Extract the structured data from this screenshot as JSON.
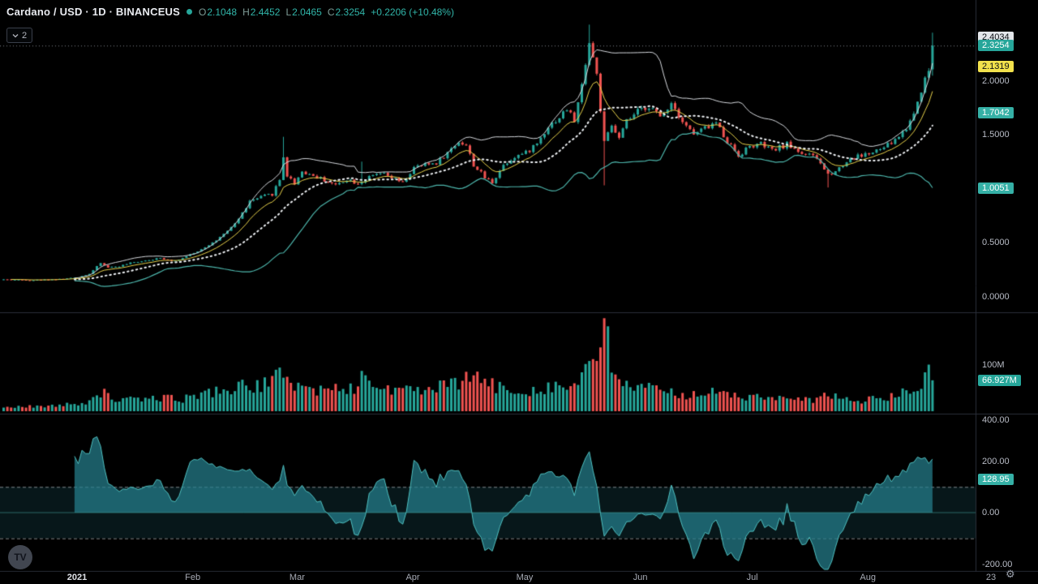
{
  "header": {
    "symbol_title": "Cardano / USD · 1D · BINANCEUS",
    "ohlc": {
      "o_label": "O",
      "o": "2.1048",
      "h_label": "H",
      "h": "2.4452",
      "l_label": "L",
      "l": "2.0465",
      "c_label": "C",
      "c": "2.3254",
      "change": "+0.2206 (+10.48%)"
    },
    "collapsed_count": "2"
  },
  "footer": {
    "logo_text": "TV",
    "gear_icon": "⚙"
  },
  "colors": {
    "up": "#26a69a",
    "down": "#ef5350",
    "band_upper_line": "#d6d9de",
    "band_lower_line": "#4db6ac",
    "basis_dotted": "#eef1f4",
    "ema_line": "#e8d24b",
    "osc_fill": "rgba(38,128,141,0.72)",
    "osc_line": "#4fc0c0",
    "osc_band_fill": "rgba(45,140,160,0.16)",
    "dashed_level": "rgba(225,228,232,0.55)",
    "separator": "#2a2e39",
    "last_price_line": "#80848d"
  },
  "chart_data": {
    "type": "candlestick",
    "title": "Cardano / USD · 1D · BINANCEUS",
    "candle_count": 250,
    "last_candle": {
      "open": 2.1048,
      "high": 2.4452,
      "low": 2.0465,
      "close": 2.3254,
      "change_abs": 0.2206,
      "change_pct": 10.48
    },
    "close_anchors": [
      [
        0,
        0.158
      ],
      [
        8,
        0.152
      ],
      [
        16,
        0.162
      ],
      [
        20,
        0.178
      ],
      [
        23,
        0.21
      ],
      [
        26,
        0.31
      ],
      [
        28,
        0.27
      ],
      [
        31,
        0.28
      ],
      [
        34,
        0.31
      ],
      [
        38,
        0.335
      ],
      [
        42,
        0.355
      ],
      [
        46,
        0.33
      ],
      [
        51,
        0.4
      ],
      [
        54,
        0.46
      ],
      [
        57,
        0.52
      ],
      [
        60,
        0.6
      ],
      [
        63,
        0.72
      ],
      [
        66,
        0.88
      ],
      [
        69,
        0.92
      ],
      [
        72,
        0.95
      ],
      [
        74,
        1.08
      ],
      [
        75,
        1.3
      ],
      [
        76,
        1.12
      ],
      [
        78,
        1.05
      ],
      [
        80,
        1.16
      ],
      [
        83,
        1.12
      ],
      [
        86,
        1.08
      ],
      [
        89,
        1.03
      ],
      [
        92,
        1.09
      ],
      [
        95,
        1.05
      ],
      [
        98,
        1.1
      ],
      [
        101,
        1.14
      ],
      [
        104,
        1.1
      ],
      [
        107,
        1.05
      ],
      [
        110,
        1.19
      ],
      [
        113,
        1.22
      ],
      [
        116,
        1.24
      ],
      [
        119,
        1.33
      ],
      [
        122,
        1.44
      ],
      [
        124,
        1.4
      ],
      [
        126,
        1.22
      ],
      [
        129,
        1.1
      ],
      [
        131,
        1.06
      ],
      [
        134,
        1.22
      ],
      [
        137,
        1.3
      ],
      [
        140,
        1.33
      ],
      [
        143,
        1.42
      ],
      [
        146,
        1.58
      ],
      [
        149,
        1.66
      ],
      [
        151,
        1.74
      ],
      [
        153,
        1.63
      ],
      [
        155,
        1.95
      ],
      [
        156,
        2.18
      ],
      [
        157,
        2.35
      ],
      [
        158,
        2.22
      ],
      [
        159,
        2.05
      ],
      [
        161,
        1.42
      ],
      [
        163,
        1.58
      ],
      [
        165,
        1.46
      ],
      [
        167,
        1.62
      ],
      [
        170,
        1.71
      ],
      [
        173,
        1.77
      ],
      [
        176,
        1.66
      ],
      [
        179,
        1.8
      ],
      [
        182,
        1.63
      ],
      [
        185,
        1.5
      ],
      [
        188,
        1.56
      ],
      [
        191,
        1.61
      ],
      [
        194,
        1.44
      ],
      [
        197,
        1.31
      ],
      [
        200,
        1.39
      ],
      [
        203,
        1.41
      ],
      [
        206,
        1.35
      ],
      [
        210,
        1.41
      ],
      [
        214,
        1.33
      ],
      [
        218,
        1.28
      ],
      [
        221,
        1.13
      ],
      [
        224,
        1.19
      ],
      [
        227,
        1.28
      ],
      [
        230,
        1.31
      ],
      [
        233,
        1.33
      ],
      [
        236,
        1.38
      ],
      [
        239,
        1.45
      ],
      [
        242,
        1.56
      ],
      [
        244,
        1.7
      ],
      [
        246,
        1.92
      ],
      [
        248,
        2.1
      ],
      [
        249,
        2.3254
      ]
    ],
    "volume_anchors_millions": [
      [
        0,
        9
      ],
      [
        15,
        12
      ],
      [
        22,
        20
      ],
      [
        26,
        42
      ],
      [
        30,
        26
      ],
      [
        36,
        24
      ],
      [
        42,
        30
      ],
      [
        48,
        26
      ],
      [
        54,
        40
      ],
      [
        60,
        48
      ],
      [
        66,
        55
      ],
      [
        72,
        60
      ],
      [
        75,
        92
      ],
      [
        78,
        60
      ],
      [
        82,
        48
      ],
      [
        86,
        44
      ],
      [
        90,
        52
      ],
      [
        94,
        46
      ],
      [
        96,
        82
      ],
      [
        99,
        55
      ],
      [
        104,
        48
      ],
      [
        110,
        44
      ],
      [
        116,
        50
      ],
      [
        121,
        58
      ],
      [
        126,
        78
      ],
      [
        129,
        62
      ],
      [
        133,
        50
      ],
      [
        138,
        42
      ],
      [
        143,
        48
      ],
      [
        148,
        56
      ],
      [
        152,
        50
      ],
      [
        155,
        72
      ],
      [
        157,
        95
      ],
      [
        159,
        110
      ],
      [
        161,
        190
      ],
      [
        163,
        95
      ],
      [
        166,
        62
      ],
      [
        170,
        52
      ],
      [
        174,
        46
      ],
      [
        178,
        42
      ],
      [
        183,
        36
      ],
      [
        188,
        42
      ],
      [
        193,
        36
      ],
      [
        198,
        32
      ],
      [
        203,
        30
      ],
      [
        208,
        27
      ],
      [
        213,
        24
      ],
      [
        218,
        24
      ],
      [
        221,
        38
      ],
      [
        225,
        26
      ],
      [
        229,
        22
      ],
      [
        233,
        26
      ],
      [
        237,
        30
      ],
      [
        241,
        38
      ],
      [
        244,
        48
      ],
      [
        246,
        58
      ],
      [
        248,
        78
      ],
      [
        249,
        66.927
      ]
    ],
    "wick_overrides": [
      {
        "i": 75,
        "h": 1.48
      },
      {
        "i": 96,
        "h": 1.25
      },
      {
        "i": 157,
        "h": 2.52
      },
      {
        "i": 161,
        "l": 1.03
      },
      {
        "i": 221,
        "l": 1.01
      }
    ],
    "overlays": {
      "bollinger_period": 20,
      "bollinger_mult": 2,
      "ema_period": 9
    },
    "oscillator": {
      "period": 20,
      "levels": [
        100,
        -100
      ],
      "last_value": 128.95
    },
    "price_axis": {
      "ticks": [
        {
          "text": "2.0000",
          "value": 2.0
        },
        {
          "text": "1.5000",
          "value": 1.5
        },
        {
          "text": "1.0000",
          "value": 1.0
        },
        {
          "text": "0.5000",
          "value": 0.5
        },
        {
          "text": "0.0000",
          "value": 0.0
        }
      ],
      "labels": [
        {
          "text": "2.4034",
          "value": 2.4034,
          "bg": "#e3e6ea",
          "fg": "#0b0e14",
          "name": "upper-band-value-label"
        },
        {
          "text": "2.3254",
          "value": 2.3254,
          "bg": "#26a69a",
          "fg": "#ffffff",
          "name": "last-price-label"
        },
        {
          "text": "2.1319",
          "value": 2.1319,
          "bg": "#f2e14c",
          "fg": "#0b0e14",
          "name": "ema-value-label"
        },
        {
          "text": "1.7042",
          "value": 1.7042,
          "bg": "#35b0a6",
          "fg": "#ffffff",
          "name": "basis-value-label"
        },
        {
          "text": "1.0051",
          "value": 1.0051,
          "bg": "#35b0a6",
          "fg": "#ffffff",
          "name": "lower-band-value-label"
        }
      ]
    },
    "volume_axis": {
      "ticks": [
        {
          "text": "100M",
          "value": 100
        }
      ],
      "labels": [
        {
          "text": "66.927M",
          "value": 66.927,
          "bg": "#26a69a",
          "fg": "#ffffff",
          "name": "volume-value-label"
        }
      ]
    },
    "osc_axis": {
      "ticks": [
        {
          "text": "400.00",
          "value": 400
        },
        {
          "text": "200.00",
          "value": 200
        },
        {
          "text": "0.00",
          "value": 0
        },
        {
          "text": "-200.00",
          "value": -200
        }
      ],
      "labels": [
        {
          "text": "128.95",
          "value": 128.95,
          "bg": "#35b0a6",
          "fg": "#ffffff",
          "name": "oscillator-value-label"
        }
      ]
    },
    "time_axis": {
      "labels": [
        {
          "text": "2021",
          "i": 20,
          "bold": true
        },
        {
          "text": "Feb",
          "i": 51
        },
        {
          "text": "Mar",
          "i": 79
        },
        {
          "text": "Apr",
          "i": 110
        },
        {
          "text": "May",
          "i": 140
        },
        {
          "text": "Jun",
          "i": 171
        },
        {
          "text": "Jul",
          "i": 201
        },
        {
          "text": "Aug",
          "i": 232
        },
        {
          "text": "23",
          "i": 265
        }
      ]
    }
  }
}
